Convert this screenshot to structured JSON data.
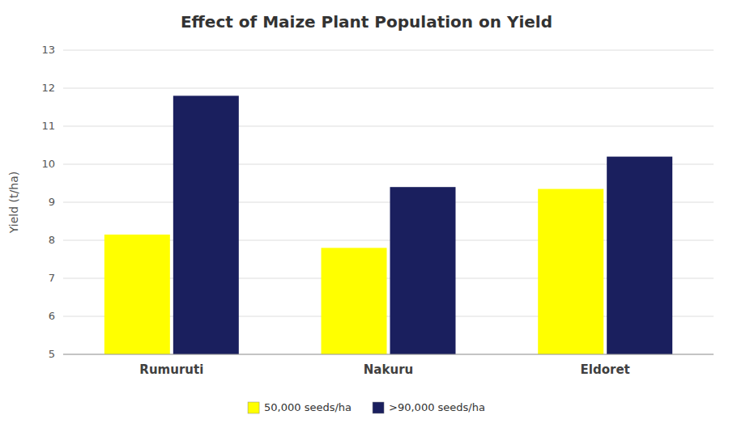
{
  "chart_data": {
    "type": "bar",
    "title": "Effect of Maize Plant Population on Yield",
    "categories": [
      "Rumuruti",
      "Nakuru",
      "Eldoret"
    ],
    "series": [
      {
        "name": "50,000 seeds/ha",
        "color": "#FFFF00",
        "values": [
          8.15,
          7.8,
          9.35
        ]
      },
      {
        "name": ">90,000 seeds/ha",
        "color": "#1a1f5e",
        "values": [
          11.8,
          9.4,
          10.2
        ]
      }
    ],
    "ylabel": "Yield (t/ha)",
    "ylim": [
      5,
      13
    ],
    "yticks": [
      5,
      6,
      7,
      8,
      9,
      10,
      11,
      12,
      13
    ],
    "grid": true,
    "legend": "bottom"
  }
}
